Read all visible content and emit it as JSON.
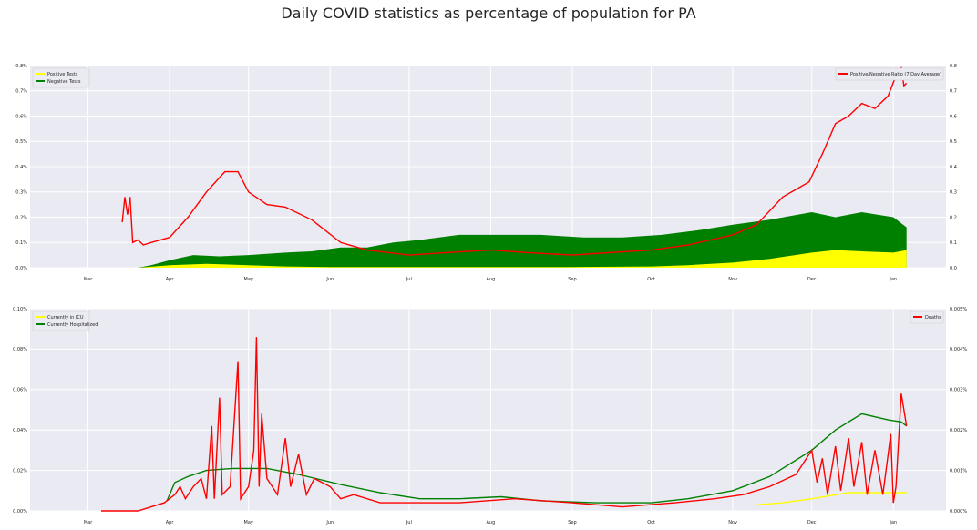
{
  "title": "Daily COVID statistics as percentage of population for PA",
  "colors": {
    "background": "#eaeaf2",
    "grid": "#ffffff",
    "positive": "#ffff00",
    "negative": "#008000",
    "ratio": "#ff0000",
    "icu": "#ffff00",
    "hospitalized": "#008000",
    "deaths": "#ff0000"
  },
  "chart_data": [
    {
      "type": "area",
      "x_ticks": [
        "Mar",
        "Apr",
        "May",
        "Jun",
        "Jul",
        "Aug",
        "Sep",
        "Oct",
        "Nov",
        "Dec",
        "Jan"
      ],
      "y_ticks_left": [
        "0.0%",
        "0.1%",
        "0.2%",
        "0.3%",
        "0.4%",
        "0.5%",
        "0.6%",
        "0.7%",
        "0.8%"
      ],
      "y_ticks_right": [
        "0.0",
        "0.1",
        "0.2",
        "0.3",
        "0.4",
        "0.5",
        "0.6",
        "0.7",
        "0.8"
      ],
      "ylim_left": [
        0,
        0.8
      ],
      "ylim_right": [
        0,
        0.8
      ],
      "grid": true,
      "legend_left": {
        "placement": "top-left",
        "entries": [
          "Positive Tests",
          "Negative Tests"
        ]
      },
      "legend_right": {
        "placement": "top-right",
        "entries": [
          "Positive/Negative Ratio (7 Day Average)"
        ]
      },
      "series": [
        {
          "name": "Negative Tests",
          "kind": "area",
          "points": [
            [
              "2020-03-20",
              0.0
            ],
            [
              "2020-03-25",
              0.01
            ],
            [
              "2020-04-01",
              0.03
            ],
            [
              "2020-04-10",
              0.05
            ],
            [
              "2020-04-20",
              0.045
            ],
            [
              "2020-05-01",
              0.05
            ],
            [
              "2020-05-15",
              0.06
            ],
            [
              "2020-05-25",
              0.065
            ],
            [
              "2020-06-05",
              0.08
            ],
            [
              "2020-06-15",
              0.08
            ],
            [
              "2020-06-25",
              0.1
            ],
            [
              "2020-07-05",
              0.11
            ],
            [
              "2020-07-20",
              0.13
            ],
            [
              "2020-08-05",
              0.13
            ],
            [
              "2020-08-20",
              0.13
            ],
            [
              "2020-09-05",
              0.12
            ],
            [
              "2020-09-20",
              0.12
            ],
            [
              "2020-10-05",
              0.13
            ],
            [
              "2020-10-20",
              0.15
            ],
            [
              "2020-11-01",
              0.17
            ],
            [
              "2020-11-15",
              0.19
            ],
            [
              "2020-12-01",
              0.22
            ],
            [
              "2020-12-10",
              0.2
            ],
            [
              "2020-12-20",
              0.22
            ],
            [
              "2021-01-01",
              0.2
            ],
            [
              "2021-01-06",
              0.16
            ]
          ]
        },
        {
          "name": "Positive Tests",
          "kind": "area",
          "points": [
            [
              "2020-03-20",
              0.0
            ],
            [
              "2020-04-01",
              0.01
            ],
            [
              "2020-04-15",
              0.015
            ],
            [
              "2020-05-01",
              0.01
            ],
            [
              "2020-05-15",
              0.005
            ],
            [
              "2020-06-01",
              0.003
            ],
            [
              "2020-07-01",
              0.003
            ],
            [
              "2020-08-01",
              0.003
            ],
            [
              "2020-09-01",
              0.003
            ],
            [
              "2020-10-01",
              0.005
            ],
            [
              "2020-10-15",
              0.01
            ],
            [
              "2020-11-01",
              0.02
            ],
            [
              "2020-11-15",
              0.035
            ],
            [
              "2020-12-01",
              0.06
            ],
            [
              "2020-12-10",
              0.07
            ],
            [
              "2020-12-20",
              0.065
            ],
            [
              "2021-01-01",
              0.06
            ],
            [
              "2021-01-06",
              0.07
            ]
          ]
        },
        {
          "name": "Positive/Negative Ratio (7 Day Average)",
          "kind": "line",
          "axis": "right",
          "points": [
            [
              "2020-03-14",
              0.18
            ],
            [
              "2020-03-15",
              0.28
            ],
            [
              "2020-03-16",
              0.21
            ],
            [
              "2020-03-17",
              0.28
            ],
            [
              "2020-03-18",
              0.1
            ],
            [
              "2020-03-20",
              0.11
            ],
            [
              "2020-03-22",
              0.09
            ],
            [
              "2020-03-25",
              0.1
            ],
            [
              "2020-04-01",
              0.12
            ],
            [
              "2020-04-08",
              0.2
            ],
            [
              "2020-04-15",
              0.3
            ],
            [
              "2020-04-22",
              0.38
            ],
            [
              "2020-04-27",
              0.38
            ],
            [
              "2020-05-01",
              0.3
            ],
            [
              "2020-05-08",
              0.25
            ],
            [
              "2020-05-15",
              0.24
            ],
            [
              "2020-05-25",
              0.19
            ],
            [
              "2020-06-05",
              0.1
            ],
            [
              "2020-06-15",
              0.07
            ],
            [
              "2020-07-01",
              0.05
            ],
            [
              "2020-07-15",
              0.06
            ],
            [
              "2020-08-01",
              0.07
            ],
            [
              "2020-08-15",
              0.06
            ],
            [
              "2020-09-01",
              0.05
            ],
            [
              "2020-09-15",
              0.06
            ],
            [
              "2020-10-01",
              0.07
            ],
            [
              "2020-10-15",
              0.09
            ],
            [
              "2020-11-01",
              0.13
            ],
            [
              "2020-11-10",
              0.17
            ],
            [
              "2020-11-20",
              0.28
            ],
            [
              "2020-11-30",
              0.34
            ],
            [
              "2020-12-05",
              0.45
            ],
            [
              "2020-12-10",
              0.57
            ],
            [
              "2020-12-15",
              0.6
            ],
            [
              "2020-12-20",
              0.65
            ],
            [
              "2020-12-25",
              0.63
            ],
            [
              "2020-12-30",
              0.68
            ],
            [
              "2021-01-02",
              0.76
            ],
            [
              "2021-01-04",
              0.79
            ],
            [
              "2021-01-05",
              0.72
            ],
            [
              "2021-01-06",
              0.73
            ]
          ]
        }
      ]
    },
    {
      "type": "line",
      "x_ticks": [
        "Mar",
        "Apr",
        "May",
        "Jun",
        "Jul",
        "Aug",
        "Sep",
        "Oct",
        "Nov",
        "Dec",
        "Jan"
      ],
      "y_ticks_left": [
        "0.00%",
        "0.02%",
        "0.04%",
        "0.06%",
        "0.08%",
        "0.10%"
      ],
      "y_ticks_right": [
        "0.000%",
        "0.001%",
        "0.002%",
        "0.003%",
        "0.004%",
        "0.005%"
      ],
      "ylim_left": [
        0,
        0.1
      ],
      "ylim_right": [
        0,
        0.005
      ],
      "grid": true,
      "legend_left": {
        "placement": "top-left",
        "entries": [
          "Currently in ICU",
          "Currently Hospitalized"
        ]
      },
      "legend_right": {
        "placement": "top-right",
        "entries": [
          "Deaths"
        ]
      },
      "series": [
        {
          "name": "Currently Hospitalized",
          "axis": "left",
          "points": [
            [
              "2020-03-31",
              0.005
            ],
            [
              "2020-04-03",
              0.014
            ],
            [
              "2020-04-08",
              0.017
            ],
            [
              "2020-04-15",
              0.02
            ],
            [
              "2020-04-25",
              0.021
            ],
            [
              "2020-05-08",
              0.021
            ],
            [
              "2020-05-20",
              0.018
            ],
            [
              "2020-06-05",
              0.013
            ],
            [
              "2020-06-20",
              0.009
            ],
            [
              "2020-07-05",
              0.006
            ],
            [
              "2020-07-20",
              0.006
            ],
            [
              "2020-08-05",
              0.007
            ],
            [
              "2020-08-20",
              0.005
            ],
            [
              "2020-09-10",
              0.004
            ],
            [
              "2020-10-01",
              0.004
            ],
            [
              "2020-10-15",
              0.006
            ],
            [
              "2020-11-01",
              0.01
            ],
            [
              "2020-11-15",
              0.017
            ],
            [
              "2020-12-01",
              0.03
            ],
            [
              "2020-12-10",
              0.04
            ],
            [
              "2020-12-20",
              0.048
            ],
            [
              "2020-12-30",
              0.045
            ],
            [
              "2021-01-04",
              0.044
            ],
            [
              "2021-01-06",
              0.042
            ]
          ]
        },
        {
          "name": "Currently in ICU",
          "axis": "left",
          "points": [
            [
              "2020-11-10",
              0.003
            ],
            [
              "2020-11-20",
              0.004
            ],
            [
              "2020-12-01",
              0.006
            ],
            [
              "2020-12-15",
              0.009
            ],
            [
              "2021-01-01",
              0.009
            ],
            [
              "2021-01-06",
              0.009
            ]
          ]
        },
        {
          "name": "Deaths",
          "axis": "right",
          "points": [
            [
              "2020-03-06",
              0.0
            ],
            [
              "2020-03-20",
              0.0
            ],
            [
              "2020-03-30",
              0.0002
            ],
            [
              "2020-04-03",
              0.0004
            ],
            [
              "2020-04-05",
              0.0006
            ],
            [
              "2020-04-07",
              0.0003
            ],
            [
              "2020-04-10",
              0.0006
            ],
            [
              "2020-04-13",
              0.0008
            ],
            [
              "2020-04-15",
              0.0003
            ],
            [
              "2020-04-17",
              0.0021
            ],
            [
              "2020-04-18",
              0.0003
            ],
            [
              "2020-04-20",
              0.0028
            ],
            [
              "2020-04-21",
              0.0004
            ],
            [
              "2020-04-24",
              0.0006
            ],
            [
              "2020-04-27",
              0.0037
            ],
            [
              "2020-04-28",
              0.0003
            ],
            [
              "2020-05-01",
              0.0006
            ],
            [
              "2020-05-03",
              0.0015
            ],
            [
              "2020-05-04",
              0.0043
            ],
            [
              "2020-05-05",
              0.0006
            ],
            [
              "2020-05-06",
              0.0024
            ],
            [
              "2020-05-08",
              0.0008
            ],
            [
              "2020-05-12",
              0.0004
            ],
            [
              "2020-05-15",
              0.0018
            ],
            [
              "2020-05-17",
              0.0006
            ],
            [
              "2020-05-20",
              0.0014
            ],
            [
              "2020-05-23",
              0.0004
            ],
            [
              "2020-05-26",
              0.0008
            ],
            [
              "2020-06-01",
              0.0006
            ],
            [
              "2020-06-05",
              0.0003
            ],
            [
              "2020-06-10",
              0.0004
            ],
            [
              "2020-06-20",
              0.0002
            ],
            [
              "2020-07-01",
              0.0002
            ],
            [
              "2020-07-20",
              0.0002
            ],
            [
              "2020-08-10",
              0.0003
            ],
            [
              "2020-09-01",
              0.0002
            ],
            [
              "2020-09-20",
              0.0001
            ],
            [
              "2020-10-10",
              0.0002
            ],
            [
              "2020-10-25",
              0.0003
            ],
            [
              "2020-11-05",
              0.0004
            ],
            [
              "2020-11-15",
              0.0006
            ],
            [
              "2020-11-25",
              0.0009
            ],
            [
              "2020-12-01",
              0.0015
            ],
            [
              "2020-12-03",
              0.0007
            ],
            [
              "2020-12-05",
              0.0013
            ],
            [
              "2020-12-07",
              0.0004
            ],
            [
              "2020-12-10",
              0.0016
            ],
            [
              "2020-12-12",
              0.0005
            ],
            [
              "2020-12-15",
              0.0018
            ],
            [
              "2020-12-17",
              0.0006
            ],
            [
              "2020-12-20",
              0.0017
            ],
            [
              "2020-12-22",
              0.0004
            ],
            [
              "2020-12-25",
              0.0015
            ],
            [
              "2020-12-28",
              0.0004
            ],
            [
              "2020-12-31",
              0.0019
            ],
            [
              "2021-01-01",
              0.0002
            ],
            [
              "2021-01-02",
              0.0006
            ],
            [
              "2021-01-04",
              0.0029
            ],
            [
              "2021-01-06",
              0.0021
            ]
          ]
        }
      ]
    }
  ]
}
